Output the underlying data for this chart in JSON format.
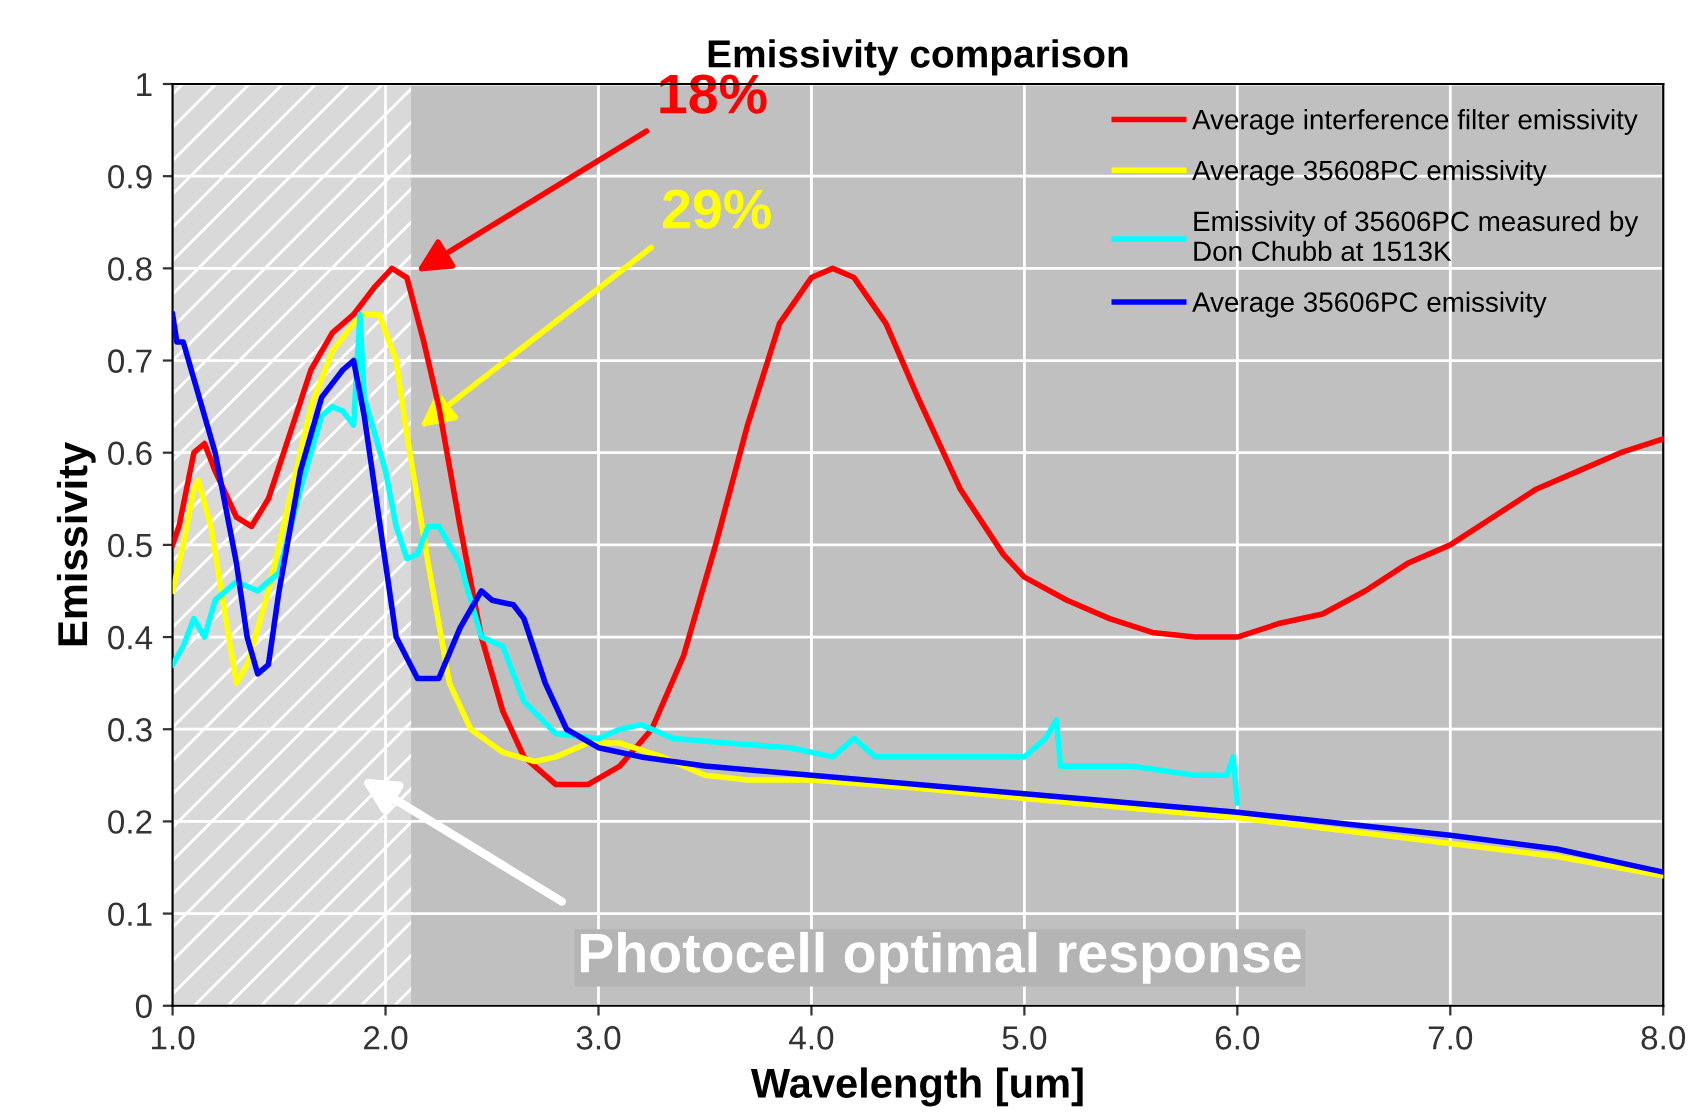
{
  "chart_data": {
    "type": "line",
    "title": "Emissivity comparison",
    "xlabel": "Wavelength [um]",
    "ylabel": "Emissivity",
    "xlim": [
      1.0,
      8.0
    ],
    "ylim": [
      0,
      1
    ],
    "xticks": [
      {
        "value": 1,
        "label": "1.0"
      },
      {
        "value": 2,
        "label": "2.0"
      },
      {
        "value": 3,
        "label": "3.0"
      },
      {
        "value": 4,
        "label": "4.0"
      },
      {
        "value": 5,
        "label": "5.0"
      },
      {
        "value": 6,
        "label": "6.0"
      },
      {
        "value": 7,
        "label": "7.0"
      },
      {
        "value": 8,
        "label": "8.0"
      }
    ],
    "yticks": [
      0,
      0.1,
      0.2,
      0.3,
      0.4,
      0.5,
      0.6,
      0.7,
      0.8,
      0.9,
      1
    ],
    "grid": true,
    "legend": "top right",
    "marker": "none",
    "line_style": "solid",
    "bands": [
      {
        "axis": "x",
        "from": 1.0,
        "to": 2.12,
        "label": "Photocell optimal response",
        "color": "#d9d9d9"
      }
    ],
    "annotations": [
      {
        "text": "18%",
        "x": 2.1,
        "y": 0.79
      },
      {
        "text": "29%",
        "x": 2.12,
        "y": 0.62
      }
    ],
    "series": [
      {
        "name": "Average interference filter emissivity",
        "color": "#ff0000",
        "x": [
          1.0,
          1.03,
          1.1,
          1.15,
          1.2,
          1.3,
          1.37,
          1.45,
          1.55,
          1.65,
          1.75,
          1.85,
          1.95,
          2.03,
          2.1,
          2.18,
          2.25,
          2.35,
          2.45,
          2.55,
          2.65,
          2.8,
          2.95,
          3.1,
          3.25,
          3.4,
          3.55,
          3.7,
          3.85,
          4.0,
          4.1,
          4.2,
          4.35,
          4.5,
          4.7,
          4.9,
          5.0,
          5.2,
          5.4,
          5.6,
          5.8,
          6.0,
          6.2,
          6.4,
          6.6,
          6.8,
          7.0,
          7.2,
          7.4,
          7.6,
          7.8,
          8.0
        ],
        "values": [
          0.5,
          0.52,
          0.6,
          0.61,
          0.58,
          0.53,
          0.52,
          0.55,
          0.62,
          0.69,
          0.73,
          0.75,
          0.78,
          0.8,
          0.79,
          0.72,
          0.65,
          0.52,
          0.4,
          0.32,
          0.27,
          0.24,
          0.24,
          0.26,
          0.3,
          0.38,
          0.5,
          0.63,
          0.74,
          0.79,
          0.8,
          0.79,
          0.74,
          0.66,
          0.56,
          0.49,
          0.465,
          0.44,
          0.42,
          0.405,
          0.4,
          0.4,
          0.415,
          0.425,
          0.45,
          0.48,
          0.5,
          0.53,
          0.56,
          0.58,
          0.6,
          0.615
        ]
      },
      {
        "name": "Average 35608PC emissivity",
        "color": "#ffff00",
        "x": [
          1.0,
          1.05,
          1.1,
          1.12,
          1.18,
          1.25,
          1.3,
          1.35,
          1.45,
          1.55,
          1.65,
          1.75,
          1.85,
          1.9,
          1.97,
          2.05,
          2.1,
          2.2,
          2.3,
          2.4,
          2.55,
          2.7,
          2.8,
          2.95,
          3.1,
          3.3,
          3.5,
          3.7,
          4.0,
          4.5,
          5.0,
          6.0,
          7.0,
          7.5,
          8.0
        ],
        "values": [
          0.45,
          0.5,
          0.56,
          0.57,
          0.52,
          0.42,
          0.35,
          0.37,
          0.45,
          0.55,
          0.65,
          0.71,
          0.74,
          0.75,
          0.75,
          0.7,
          0.62,
          0.48,
          0.35,
          0.3,
          0.275,
          0.265,
          0.27,
          0.285,
          0.285,
          0.27,
          0.25,
          0.245,
          0.245,
          0.236,
          0.225,
          0.204,
          0.176,
          0.162,
          0.141
        ]
      },
      {
        "name": "Emissivity of 35606PC measured by\nDon Chubb at 1513K",
        "color": "#00ffff",
        "x": [
          1.0,
          1.05,
          1.1,
          1.15,
          1.2,
          1.3,
          1.4,
          1.5,
          1.6,
          1.7,
          1.75,
          1.8,
          1.85,
          1.88,
          1.9,
          1.95,
          2.0,
          2.05,
          2.1,
          2.15,
          2.2,
          2.25,
          2.35,
          2.45,
          2.55,
          2.65,
          2.8,
          3.0,
          3.1,
          3.2,
          3.35,
          3.6,
          3.9,
          4.1,
          4.2,
          4.3,
          4.6,
          5.0,
          5.1,
          5.15,
          5.17,
          5.5,
          5.8,
          5.95,
          5.98,
          6.0
        ],
        "values": [
          0.37,
          0.39,
          0.42,
          0.4,
          0.44,
          0.46,
          0.45,
          0.47,
          0.56,
          0.64,
          0.65,
          0.645,
          0.63,
          0.75,
          0.66,
          0.62,
          0.58,
          0.52,
          0.485,
          0.49,
          0.52,
          0.52,
          0.48,
          0.4,
          0.39,
          0.33,
          0.295,
          0.29,
          0.3,
          0.305,
          0.29,
          0.285,
          0.28,
          0.27,
          0.29,
          0.27,
          0.27,
          0.27,
          0.29,
          0.31,
          0.26,
          0.26,
          0.25,
          0.25,
          0.27,
          0.22
        ]
      },
      {
        "name": "Average 35606PC emissivity",
        "color": "#0000ff",
        "x": [
          1.0,
          1.02,
          1.05,
          1.1,
          1.2,
          1.3,
          1.35,
          1.4,
          1.45,
          1.5,
          1.6,
          1.7,
          1.8,
          1.85,
          1.9,
          2.0,
          2.05,
          2.15,
          2.25,
          2.35,
          2.45,
          2.5,
          2.6,
          2.65,
          2.75,
          2.85,
          3.0,
          3.2,
          3.5,
          4.0,
          5.0,
          6.0,
          7.0,
          7.5,
          7.8,
          8.0
        ],
        "values": [
          0.75,
          0.72,
          0.72,
          0.68,
          0.6,
          0.48,
          0.4,
          0.36,
          0.37,
          0.45,
          0.58,
          0.66,
          0.69,
          0.7,
          0.64,
          0.48,
          0.4,
          0.355,
          0.355,
          0.41,
          0.45,
          0.44,
          0.435,
          0.42,
          0.35,
          0.3,
          0.28,
          0.27,
          0.26,
          0.25,
          0.23,
          0.21,
          0.185,
          0.17,
          0.155,
          0.145
        ]
      }
    ]
  }
}
